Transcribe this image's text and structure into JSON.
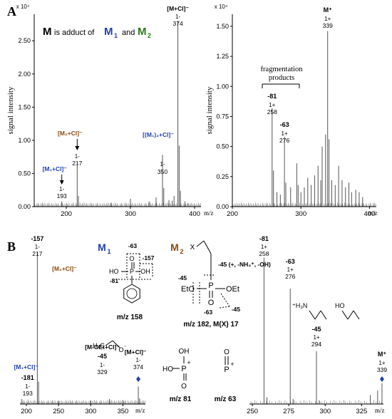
{
  "panel_a": {
    "letter": "A",
    "headline": {
      "m": "M",
      "text": "is adduct of",
      "m1": "M",
      "m1_sub": "1",
      "and": "and",
      "m2": "M",
      "m2_sub": "2"
    },
    "colors": {
      "m1": "#1f3fb0",
      "m2": "#2e7a1e",
      "cl_adduct": "#8a4a10",
      "axis": "#000000",
      "line": "#555555"
    }
  },
  "panel_b": {
    "letter": "B"
  },
  "chart_data": [
    {
      "id": "A-left",
      "type": "line",
      "x_unit_label": "m/z",
      "xlim": [
        150,
        410
      ],
      "ylim": [
        0,
        29000
      ],
      "y_multiplier": "x 10⁴",
      "ylabel": "signal intensity",
      "xticks": [
        "200",
        "300",
        "400"
      ],
      "yticks": [
        "0.00",
        "0.50",
        "1.00",
        "1.50",
        "2.00",
        "2.50"
      ],
      "peaks": [
        {
          "x": 193,
          "y": 800
        },
        {
          "x": 217,
          "y": 6200
        },
        {
          "x": 219,
          "y": 1600
        },
        {
          "x": 270,
          "y": 600
        },
        {
          "x": 300,
          "y": 1200
        },
        {
          "x": 329,
          "y": 800
        },
        {
          "x": 340,
          "y": 1400
        },
        {
          "x": 350,
          "y": 7800
        },
        {
          "x": 352,
          "y": 2800
        },
        {
          "x": 360,
          "y": 1000
        },
        {
          "x": 365,
          "y": 900
        },
        {
          "x": 368,
          "y": 1600
        },
        {
          "x": 374,
          "y": 28000
        },
        {
          "x": 376,
          "y": 9200
        },
        {
          "x": 378,
          "y": 2400
        },
        {
          "x": 385,
          "y": 800
        },
        {
          "x": 390,
          "y": 500
        }
      ],
      "annotations": [
        {
          "label": "[M+Cl]⁻",
          "sub": "1-",
          "mz": "374",
          "x": 374
        },
        {
          "label": "[(M₁)₂+Cl]⁻",
          "sub": "1-",
          "mz": "350",
          "x": 350
        },
        {
          "label": "[M₂+Cl]⁻",
          "sub": "1-",
          "mz": "217",
          "x": 217
        },
        {
          "label": "[M₁+Cl]⁻",
          "sub": "1-",
          "mz": "193",
          "x": 193
        }
      ]
    },
    {
      "id": "A-right",
      "type": "line",
      "x_unit_label": "m/z",
      "xlim": [
        200,
        410
      ],
      "ylim": [
        0,
        16000
      ],
      "y_multiplier": "x 10⁴",
      "ylabel": "signal intensity",
      "xticks": [
        "200",
        "300",
        "400"
      ],
      "yticks": [
        "0.00",
        "0.25",
        "0.50",
        "0.75",
        "1.00",
        "1.25",
        "1.50"
      ],
      "peaks": [
        {
          "x": 258,
          "y": 8200
        },
        {
          "x": 260,
          "y": 3000
        },
        {
          "x": 265,
          "y": 1200
        },
        {
          "x": 270,
          "y": 1000
        },
        {
          "x": 276,
          "y": 5800
        },
        {
          "x": 278,
          "y": 2000
        },
        {
          "x": 285,
          "y": 1600
        },
        {
          "x": 294,
          "y": 3600
        },
        {
          "x": 296,
          "y": 1800
        },
        {
          "x": 300,
          "y": 1200
        },
        {
          "x": 305,
          "y": 1600
        },
        {
          "x": 310,
          "y": 2400
        },
        {
          "x": 315,
          "y": 1800
        },
        {
          "x": 320,
          "y": 2600
        },
        {
          "x": 325,
          "y": 3400
        },
        {
          "x": 329,
          "y": 2200
        },
        {
          "x": 331,
          "y": 5000
        },
        {
          "x": 336,
          "y": 6000
        },
        {
          "x": 339,
          "y": 14600
        },
        {
          "x": 341,
          "y": 5600
        },
        {
          "x": 345,
          "y": 2200
        },
        {
          "x": 350,
          "y": 1800
        },
        {
          "x": 355,
          "y": 3400
        },
        {
          "x": 360,
          "y": 2200
        },
        {
          "x": 365,
          "y": 1600
        },
        {
          "x": 370,
          "y": 2000
        },
        {
          "x": 374,
          "y": 1200
        },
        {
          "x": 380,
          "y": 1400
        },
        {
          "x": 385,
          "y": 1200
        },
        {
          "x": 390,
          "y": 800
        }
      ],
      "annotations": [
        {
          "label": "M⁺",
          "sub": "1+",
          "mz": "339",
          "x": 339
        },
        {
          "label": "-81",
          "sub": "1+",
          "mz": "258",
          "x": 258
        },
        {
          "label": "-63",
          "sub": "1+",
          "mz": "276",
          "x": 276
        }
      ],
      "bracket_label": [
        "fragmentation",
        "products"
      ]
    },
    {
      "id": "B-left",
      "type": "line",
      "x_unit_label": "m/z",
      "xlim": [
        190,
        385
      ],
      "ylim": [
        0,
        30000
      ],
      "xticks": [
        "200",
        "250",
        "300",
        "350"
      ],
      "peaks": [
        {
          "x": 193,
          "y": 900
        },
        {
          "x": 217,
          "y": 27000
        },
        {
          "x": 219,
          "y": 4000
        },
        {
          "x": 250,
          "y": 500
        },
        {
          "x": 300,
          "y": 600
        },
        {
          "x": 329,
          "y": 900
        },
        {
          "x": 350,
          "y": 700
        },
        {
          "x": 374,
          "y": 3100
        },
        {
          "x": 376,
          "y": 1000
        }
      ],
      "annotations": [
        {
          "label": "-157",
          "sub": "1-",
          "mz": "217",
          "x": 217
        },
        {
          "label": "[M₂+Cl]⁻",
          "x": 217
        },
        {
          "label": "[M₁+Cl]⁻",
          "neutral": "-181",
          "sub": "1-",
          "mz": "193",
          "x": 193
        },
        {
          "label": "[M-OEt+Cl]⁻",
          "neutral": "-45",
          "sub": "1-",
          "mz": "329",
          "x": 329
        },
        {
          "label": "[M+Cl]⁻",
          "sub": "1-",
          "mz": "374",
          "x": 374
        }
      ]
    },
    {
      "id": "B-right",
      "type": "line",
      "x_unit_label": "m/z",
      "xlim": [
        248,
        340
      ],
      "ylim": [
        0,
        30000
      ],
      "xticks": [
        "250",
        "275",
        "300",
        "325"
      ],
      "peaks": [
        {
          "x": 258,
          "y": 26000
        },
        {
          "x": 260,
          "y": 1200
        },
        {
          "x": 276,
          "y": 20500
        },
        {
          "x": 278,
          "y": 900
        },
        {
          "x": 294,
          "y": 9400
        },
        {
          "x": 296,
          "y": 600
        },
        {
          "x": 331,
          "y": 1600
        },
        {
          "x": 336,
          "y": 2400
        },
        {
          "x": 339,
          "y": 3700
        }
      ],
      "annotations": [
        {
          "label": "-81",
          "sub": "1+",
          "mz": "258",
          "x": 258
        },
        {
          "label": "-63",
          "sub": "1+",
          "mz": "276",
          "x": 276
        },
        {
          "label": "-45",
          "sub": "1+",
          "mz": "294",
          "x": 294
        },
        {
          "label": "M⁺",
          "sub": "1+",
          "mz": "339",
          "x": 339
        }
      ]
    }
  ],
  "structures": {
    "m1": {
      "label": "M",
      "sub": "1",
      "mass": "m/z 158",
      "losses": [
        "-63",
        "-157",
        "-81"
      ],
      "atoms": [
        "HO",
        "P",
        "OH",
        "O"
      ]
    },
    "m2": {
      "label": "M",
      "sub": "2",
      "x": "X",
      "mass": "m/z 182, M(X) 17",
      "loss_note": "-45 (+, -NH₃⁺, -OH)",
      "losses": [
        "-45",
        "-63",
        "-45"
      ],
      "atoms": [
        "EtO",
        "P",
        "OEt",
        "O"
      ]
    },
    "ion81": {
      "mass": "m/z 81",
      "atoms": [
        "OH",
        "HO",
        "P",
        "+"
      ]
    },
    "ion63": {
      "mass": "m/z 63",
      "atoms": [
        "O",
        "P",
        "+"
      ]
    },
    "ethoxide": {
      "atoms": [
        "H₃C",
        "O",
        "⁻"
      ]
    },
    "amine": {
      "atoms": [
        "⁺H₃N",
        "HO"
      ]
    }
  }
}
